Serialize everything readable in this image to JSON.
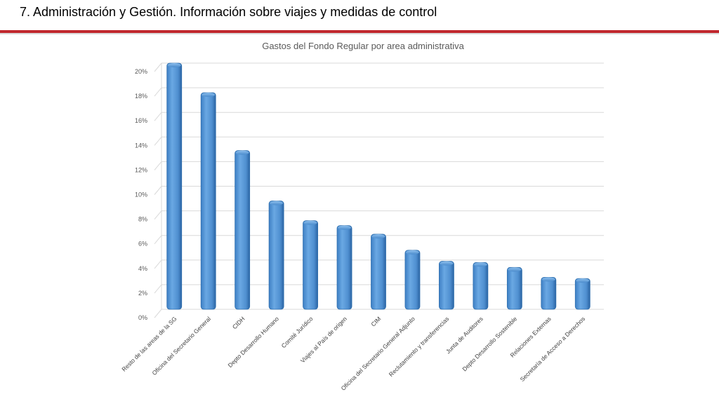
{
  "slide": {
    "title": "7. Administración y Gestión. Información sobre viajes y medidas de control"
  },
  "colors": {
    "accent_rule": "#c0272d",
    "bar_fill": "#5b9bd5",
    "bar_dark": "#2f6fae",
    "grid": "#d9d9d9"
  },
  "chart_data": {
    "type": "bar",
    "title": "Gastos del Fondo Regular por area administrativa",
    "xlabel": "",
    "ylabel": "",
    "ylim": [
      0,
      20
    ],
    "yticks": [
      "0%",
      "2%",
      "4%",
      "6%",
      "8%",
      "10%",
      "12%",
      "14%",
      "16%",
      "18%",
      "20%"
    ],
    "grid": true,
    "legend": "none",
    "categories": [
      "Resto de las areas de la SG",
      "Oficina del Secretario General",
      "CIDH",
      "Depto Desarrollo Humano",
      "Comité Jurídico",
      "Viajes al País de origen",
      "CIM",
      "Oficina del Secretario General Adjunto",
      "Reclutamiento y transferencias",
      "Junta de Auditores",
      "Depto Desarrollo Sostenible",
      "Relaciones Externas",
      "Secretaría de Acceso a Derechos"
    ],
    "values": [
      20.0,
      17.6,
      12.9,
      8.8,
      7.2,
      6.8,
      6.1,
      4.8,
      3.9,
      3.8,
      3.4,
      2.6,
      2.5
    ]
  }
}
